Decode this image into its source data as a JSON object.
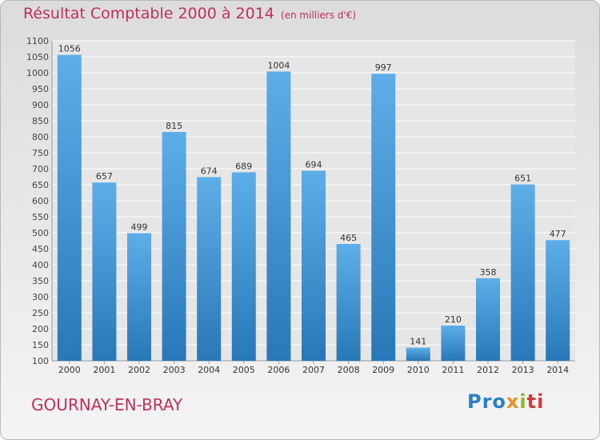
{
  "title": "Résultat Comptable 2000 à 2014",
  "unit_label": "(en milliers d'€)",
  "commune": "GOURNAY-EN-BRAY",
  "logo": {
    "p1": "Pro",
    "p2": "x",
    "p3": "i",
    "p4": "ti"
  },
  "colors": {
    "title": "#c0305a",
    "bar_top": "#5daee8",
    "bar_bottom": "#2878b8",
    "grid": "#ffffff"
  },
  "chart_data": {
    "type": "bar",
    "title": "Résultat Comptable 2000 à 2014",
    "subtitle": "(en milliers d'€)",
    "xlabel": "",
    "ylabel": "",
    "categories": [
      "2000",
      "2001",
      "2002",
      "2003",
      "2004",
      "2005",
      "2006",
      "2007",
      "2008",
      "2009",
      "2010",
      "2011",
      "2012",
      "2013",
      "2014"
    ],
    "values": [
      1056,
      657,
      499,
      815,
      674,
      689,
      1004,
      694,
      465,
      997,
      141,
      210,
      358,
      651,
      477
    ],
    "ylim": [
      100,
      1100
    ],
    "ytick_step": 50,
    "grid": true
  }
}
